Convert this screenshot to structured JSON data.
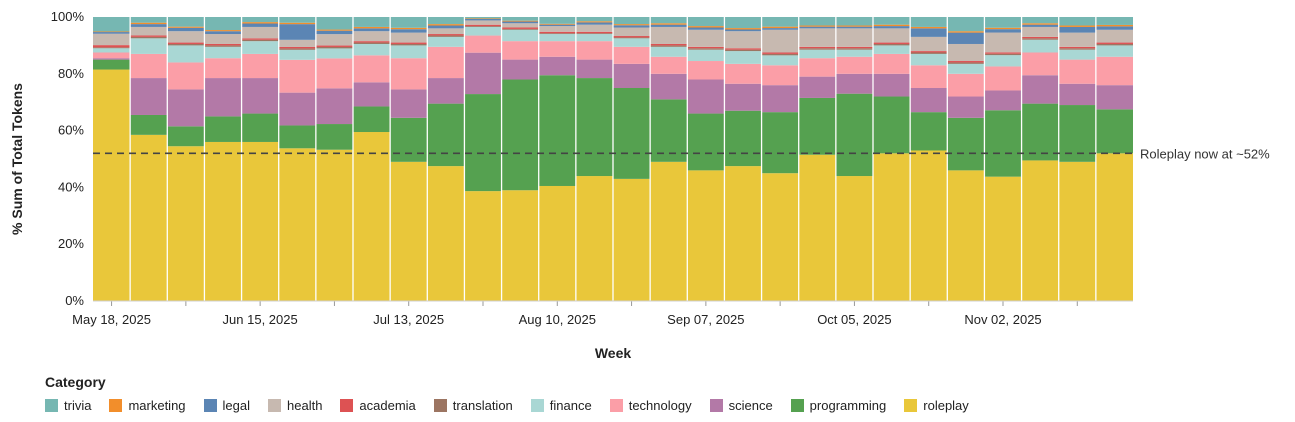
{
  "chart_data": {
    "type": "bar",
    "stacked": true,
    "title": "",
    "xlabel": "Week",
    "ylabel": "% Sum of Total Tokens",
    "ylim": [
      0,
      100
    ],
    "y_ticks": [
      "0%",
      "20%",
      "40%",
      "60%",
      "80%",
      "100%"
    ],
    "x_tick_labels": [
      "May 18, 2025",
      "Jun 15, 2025",
      "Jul 13, 2025",
      "Aug 10, 2025",
      "Sep 07, 2025",
      "Oct 05, 2025",
      "Nov 02, 2025"
    ],
    "x_tick_label_weeks": [
      0,
      4,
      8,
      12,
      16,
      20,
      24
    ],
    "weeks": 28,
    "reference_line": {
      "value": 52,
      "label": "Roleplay now at ~52%"
    },
    "legend_title": "Category",
    "legend": [
      "trivia",
      "marketing",
      "legal",
      "health",
      "academia",
      "translation",
      "finance",
      "technology",
      "science",
      "programming",
      "roleplay"
    ],
    "series": [
      {
        "name": "roleplay",
        "color": "#e9c73a",
        "values": [
          81.5,
          58.5,
          54.5,
          56,
          56,
          53.5,
          53,
          59.5,
          49,
          47.5,
          38.5,
          39,
          40.5,
          44,
          43,
          49,
          46,
          47.5,
          45,
          51.5,
          44,
          52,
          53,
          46,
          44,
          49.5,
          49,
          52
        ]
      },
      {
        "name": "programming",
        "color": "#55a150",
        "values": [
          3.5,
          7,
          7,
          9,
          10,
          8,
          9,
          9,
          15.5,
          22,
          34,
          39,
          39,
          34.5,
          32,
          22,
          20,
          19.5,
          21.5,
          20,
          29,
          20,
          13.5,
          18.5,
          23.5,
          20,
          20,
          15.5
        ]
      },
      {
        "name": "science",
        "color": "#b379a7",
        "values": [
          0.5,
          13,
          13,
          13.5,
          12.5,
          11.5,
          12.5,
          8.5,
          10,
          9,
          14.5,
          7,
          6.5,
          6.5,
          8.5,
          9,
          12,
          9.5,
          9.5,
          7.5,
          7,
          8,
          8.5,
          7.5,
          7,
          10,
          7.5,
          8.5
        ]
      },
      {
        "name": "technology",
        "color": "#fb9ea7",
        "values": [
          2,
          8.5,
          9.5,
          7,
          8.5,
          11.5,
          10.5,
          9.5,
          11,
          11,
          6,
          6.5,
          5.5,
          6.5,
          6,
          6,
          6.5,
          7,
          7,
          6.5,
          6,
          7,
          8,
          8,
          8.5,
          8,
          8.5,
          10
        ]
      },
      {
        "name": "finance",
        "color": "#a9d7d4",
        "values": [
          1.5,
          5.5,
          6,
          4,
          4.5,
          3.5,
          3.5,
          4,
          4.5,
          3.5,
          3,
          4,
          2.5,
          2.5,
          3,
          3.5,
          4,
          4.5,
          3.5,
          3,
          2.5,
          3,
          4,
          3.5,
          4,
          4.5,
          3.5,
          4
        ]
      },
      {
        "name": "translation",
        "color": "#9c7562",
        "values": [
          0.3,
          0.5,
          0.5,
          0.5,
          0.5,
          0.5,
          0.5,
          0.5,
          0.5,
          0.5,
          0.3,
          0.3,
          0.3,
          0.3,
          0.3,
          0.5,
          0.5,
          0.5,
          0.5,
          0.5,
          0.5,
          0.5,
          0.5,
          0.5,
          0.5,
          0.5,
          0.5,
          0.5
        ]
      },
      {
        "name": "academia",
        "color": "#dd5253",
        "values": [
          0.8,
          0.5,
          0.5,
          0.5,
          0.5,
          0.5,
          0.5,
          0.5,
          0.5,
          0.5,
          0.5,
          0.5,
          0.5,
          0.5,
          0.5,
          0.5,
          0.5,
          0.5,
          0.5,
          0.5,
          0.5,
          0.5,
          0.5,
          0.5,
          0.5,
          0.5,
          0.5,
          0.5
        ]
      },
      {
        "name": "health",
        "color": "#c7b9b0",
        "values": [
          4,
          3,
          4,
          3.5,
          4,
          2.5,
          4,
          3.5,
          3.5,
          2,
          1.5,
          1.5,
          2,
          2.5,
          3,
          6,
          6,
          6,
          8,
          6.5,
          6.5,
          5,
          5,
          6,
          7,
          3.5,
          5,
          4.5
        ]
      },
      {
        "name": "legal",
        "color": "#5b85b4",
        "values": [
          0.6,
          1,
          1.2,
          1,
          1.2,
          5.5,
          1.2,
          1,
          1.2,
          1,
          0.5,
          0.6,
          0.5,
          0.8,
          0.8,
          0.8,
          0.8,
          0.6,
          0.6,
          0.6,
          0.6,
          0.8,
          3,
          4,
          1.2,
          0.8,
          2,
          1.2
        ]
      },
      {
        "name": "marketing",
        "color": "#f28e2b",
        "values": [
          0.2,
          0.5,
          0.4,
          0.4,
          0.5,
          0.5,
          0.4,
          0.5,
          0.5,
          0.5,
          0.2,
          0.3,
          0.3,
          0.4,
          0.4,
          0.5,
          0.5,
          0.5,
          0.5,
          0.4,
          0.4,
          0.5,
          0.5,
          0.5,
          0.5,
          0.5,
          0.5,
          0.5
        ]
      },
      {
        "name": "trivia",
        "color": "#76b7b2",
        "values": [
          5.1,
          2,
          3.4,
          4.6,
          1.8,
          2,
          4.4,
          3.5,
          3.8,
          2.5,
          0.5,
          1.3,
          2.4,
          1.5,
          2.5,
          2.2,
          3.2,
          3.9,
          3.4,
          3,
          3,
          2.7,
          3.5,
          5,
          3.8,
          2.2,
          3,
          2.8
        ]
      }
    ]
  }
}
